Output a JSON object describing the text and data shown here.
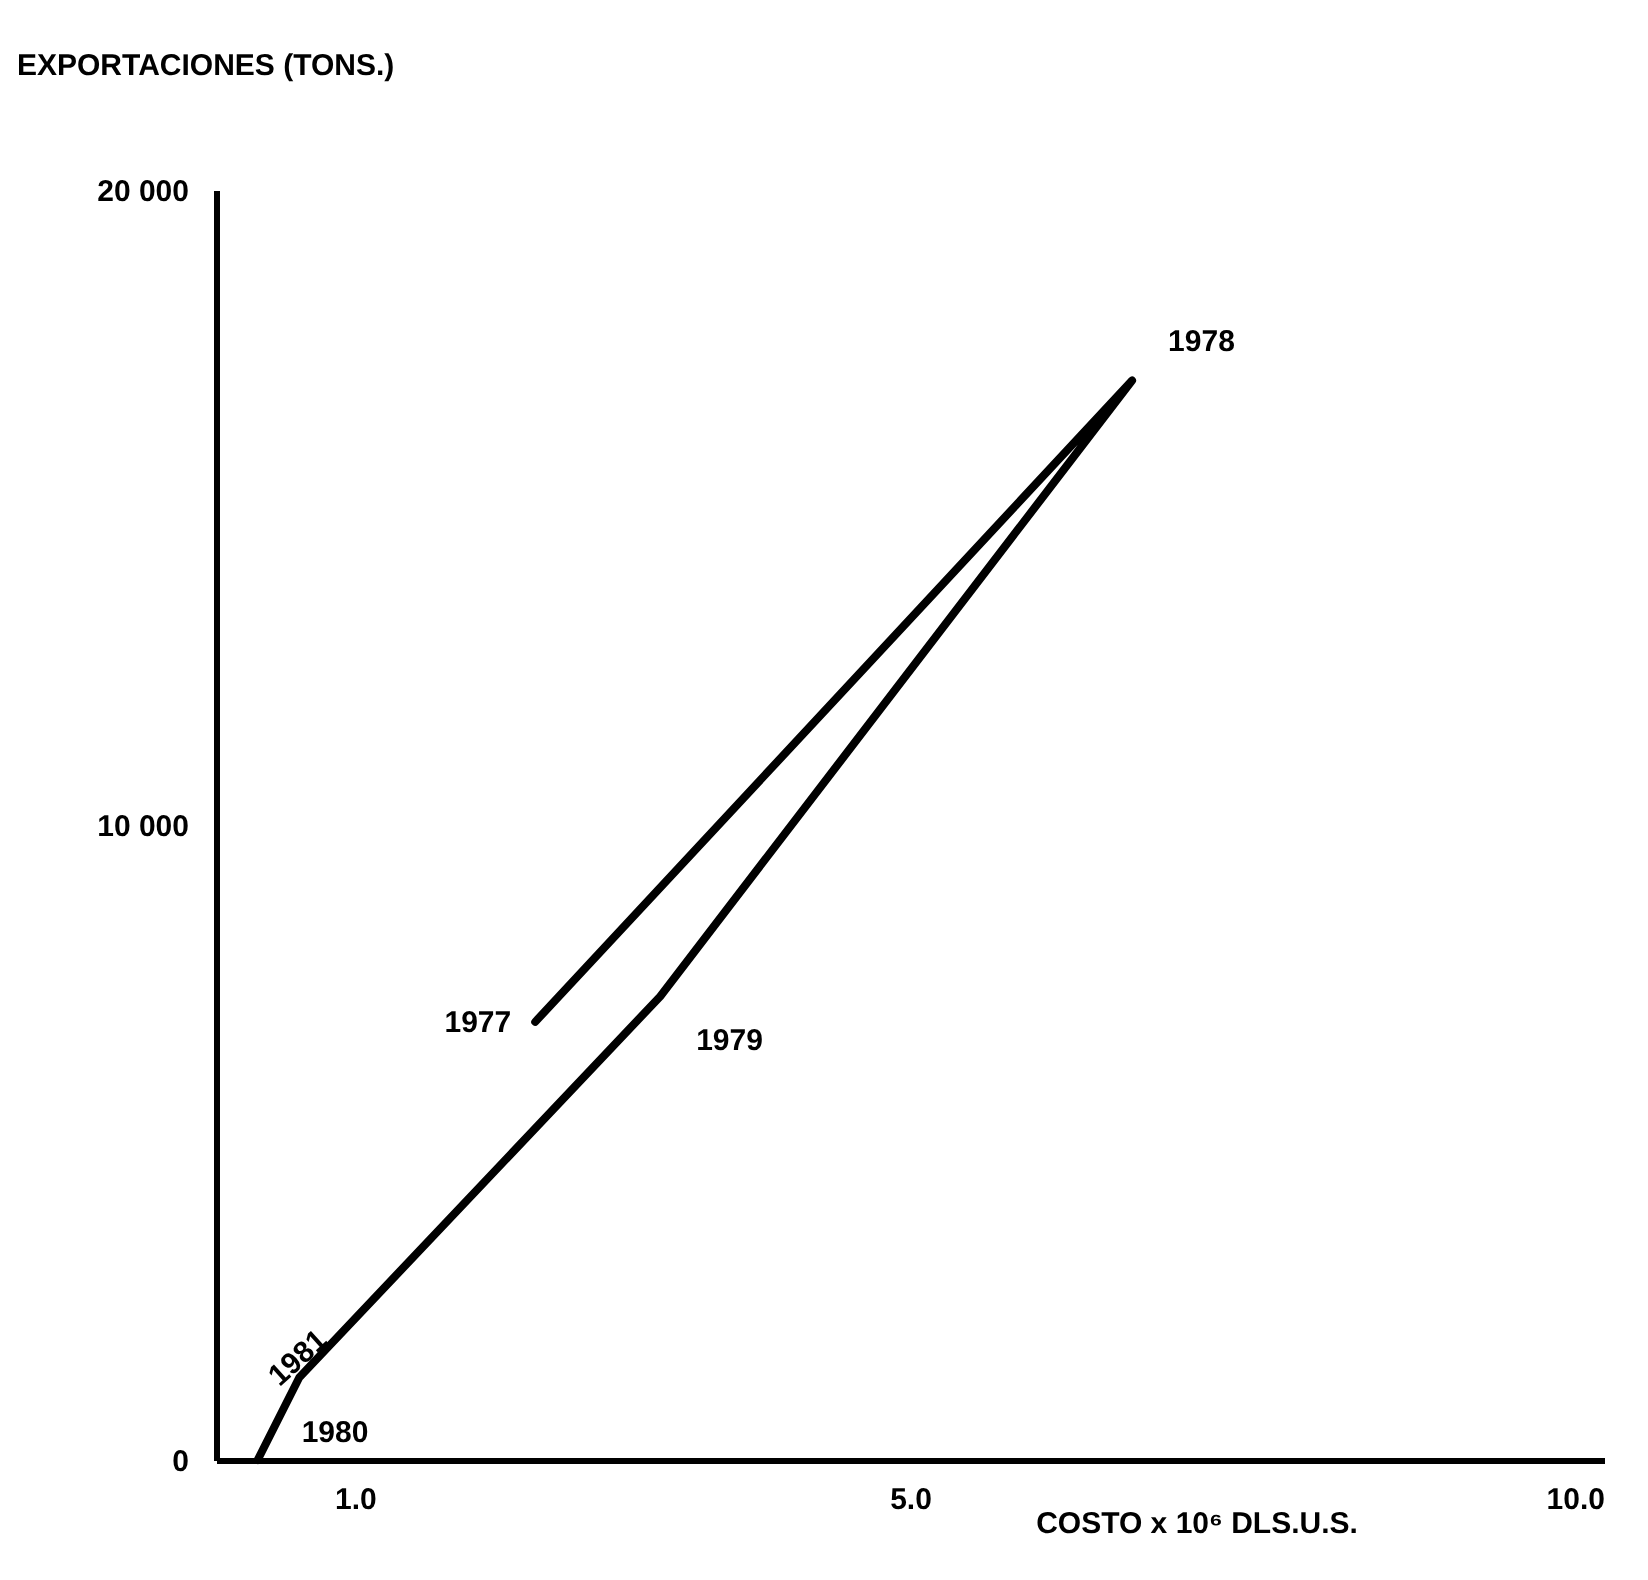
{
  "chart_data": {
    "type": "line",
    "xlabel": "COSTO x 10⁶ DLS.U.S.",
    "ylabel": "EXPORTACIONES (TONS.)",
    "x": [
      2.3,
      6.6,
      3.2,
      0.6,
      0.3
    ],
    "series": [
      {
        "color": "#000000",
        "values": [
          6900,
          17000,
          7300,
          1300,
          0
        ]
      }
    ],
    "xlim": [
      0,
      10
    ],
    "ylim": [
      0,
      20000
    ],
    "xticks": [
      {
        "value": 1,
        "label": "1.0"
      },
      {
        "value": 5,
        "label": "5.0"
      },
      {
        "value": 10,
        "label": "10.0"
      }
    ],
    "yticks": [
      0,
      {
        "value": 10000,
        "label": "10 000"
      },
      {
        "value": 20000,
        "label": "20 000"
      }
    ],
    "annotations": [
      {
        "text": "1977",
        "x": 2.3,
        "y": 6900
      },
      {
        "text": "1978",
        "x": 6.6,
        "y": 17000
      },
      {
        "text": "1979",
        "x": 3.2,
        "y": 7300
      },
      {
        "text": "1981",
        "x": 0.6,
        "y": 1300
      },
      {
        "text": "1980",
        "x": 0.3,
        "y": 0
      }
    ],
    "grid": false,
    "marker": "none",
    "line_style": "solid"
  }
}
